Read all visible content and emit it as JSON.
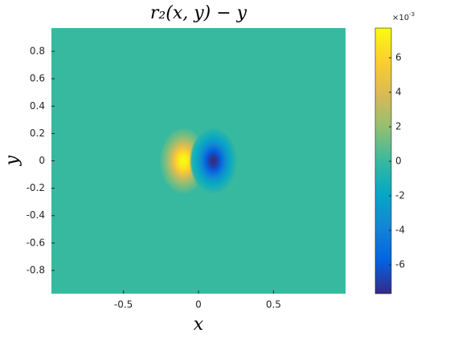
{
  "chart_data": {
    "type": "heatmap",
    "title": "r₂(x, y) − y",
    "xlabel": "x",
    "ylabel": "y",
    "xlim": [
      -0.98,
      0.98
    ],
    "ylim": [
      -0.97,
      0.97
    ],
    "xticks": [
      -0.5,
      0,
      0.5
    ],
    "yticks": [
      -0.8,
      -0.6,
      -0.4,
      -0.2,
      0,
      0.2,
      0.4,
      0.6,
      0.8
    ],
    "peaks": [
      {
        "x": -0.1,
        "y": 0,
        "value": 7.7
      },
      {
        "x": 0.1,
        "y": 0,
        "value": -7.6
      }
    ],
    "colormap": [
      "#352a87",
      "#0363e1",
      "#1485d4",
      "#06a7c6",
      "#38b99e",
      "#92bf73",
      "#d9ba56",
      "#fcce2e",
      "#f9fb0e"
    ],
    "clim": [
      -7.67,
      7.72
    ],
    "cticks": [
      -6,
      -4,
      -2,
      0,
      2,
      4,
      6
    ],
    "colorbar_scale": {
      "base": "×10",
      "power": "-3"
    }
  }
}
